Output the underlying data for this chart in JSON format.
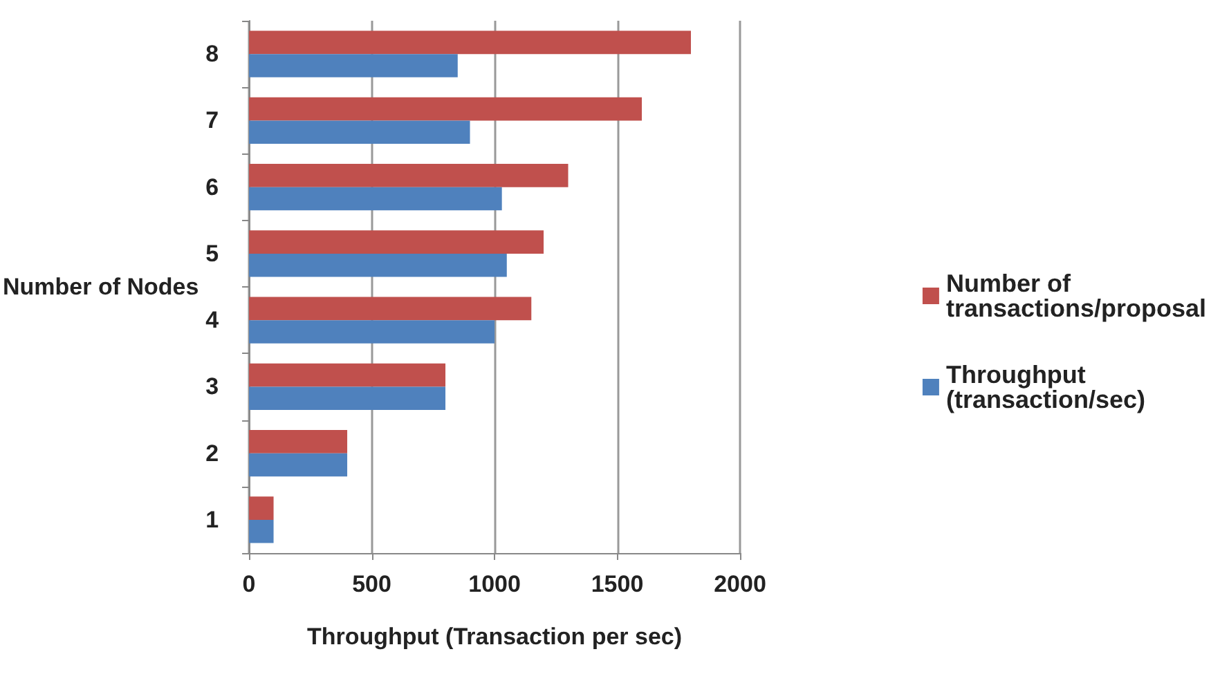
{
  "chart_data": {
    "type": "bar",
    "orientation": "horizontal",
    "xlabel": "Throughput (Transaction per sec)",
    "ylabel": "Number of Nodes",
    "categories": [
      "8",
      "7",
      "6",
      "5",
      "4",
      "3",
      "2",
      "1"
    ],
    "series": [
      {
        "name": "Number of transactions/proposal",
        "color": "#c0504d",
        "values": [
          1800,
          1600,
          1300,
          1200,
          1150,
          800,
          400,
          100
        ]
      },
      {
        "name": "Throughput (transaction/sec)",
        "color": "#4f81bd",
        "values": [
          850,
          900,
          1030,
          1050,
          1000,
          800,
          400,
          100
        ]
      }
    ],
    "xlim": [
      0,
      2000
    ],
    "xticks": [
      0,
      500,
      1000,
      1500,
      2000
    ],
    "grid": "x",
    "legend": "right"
  }
}
